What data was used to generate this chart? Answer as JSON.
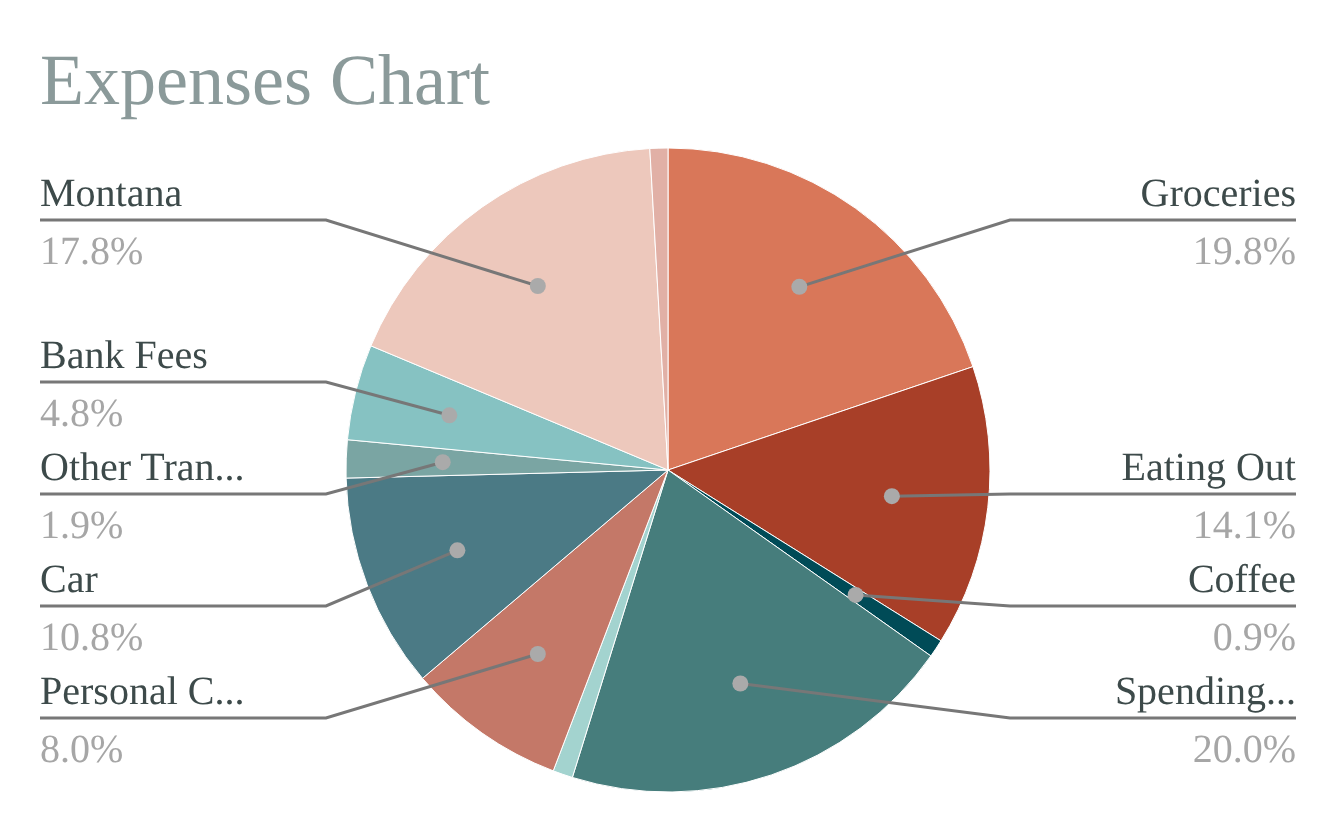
{
  "chart_data": {
    "type": "pie",
    "title": "Expenses Chart",
    "categories": [
      "Groceries",
      "Eating Out",
      "Coffee",
      "Spending...",
      null,
      "Personal C...",
      "Car",
      "Other Tran...",
      "Bank Fees",
      "Montana",
      null
    ],
    "values": [
      19.8,
      14.1,
      0.9,
      20.0,
      1.0,
      8.0,
      10.8,
      1.9,
      4.8,
      17.8,
      0.9
    ],
    "colors": [
      "#d97759",
      "#a83f28",
      "#004b57",
      "#467d7c",
      "#a3d3cf",
      "#c47868",
      "#4b7a85",
      "#7aa5a3",
      "#86c2c2",
      "#edc8bc",
      "#e1b0a6"
    ],
    "value_labels": [
      "19.8%",
      "14.1%",
      "0.9%",
      "20.0%",
      null,
      "8.0%",
      "10.8%",
      "1.9%",
      "4.8%",
      "17.8%",
      null
    ]
  }
}
